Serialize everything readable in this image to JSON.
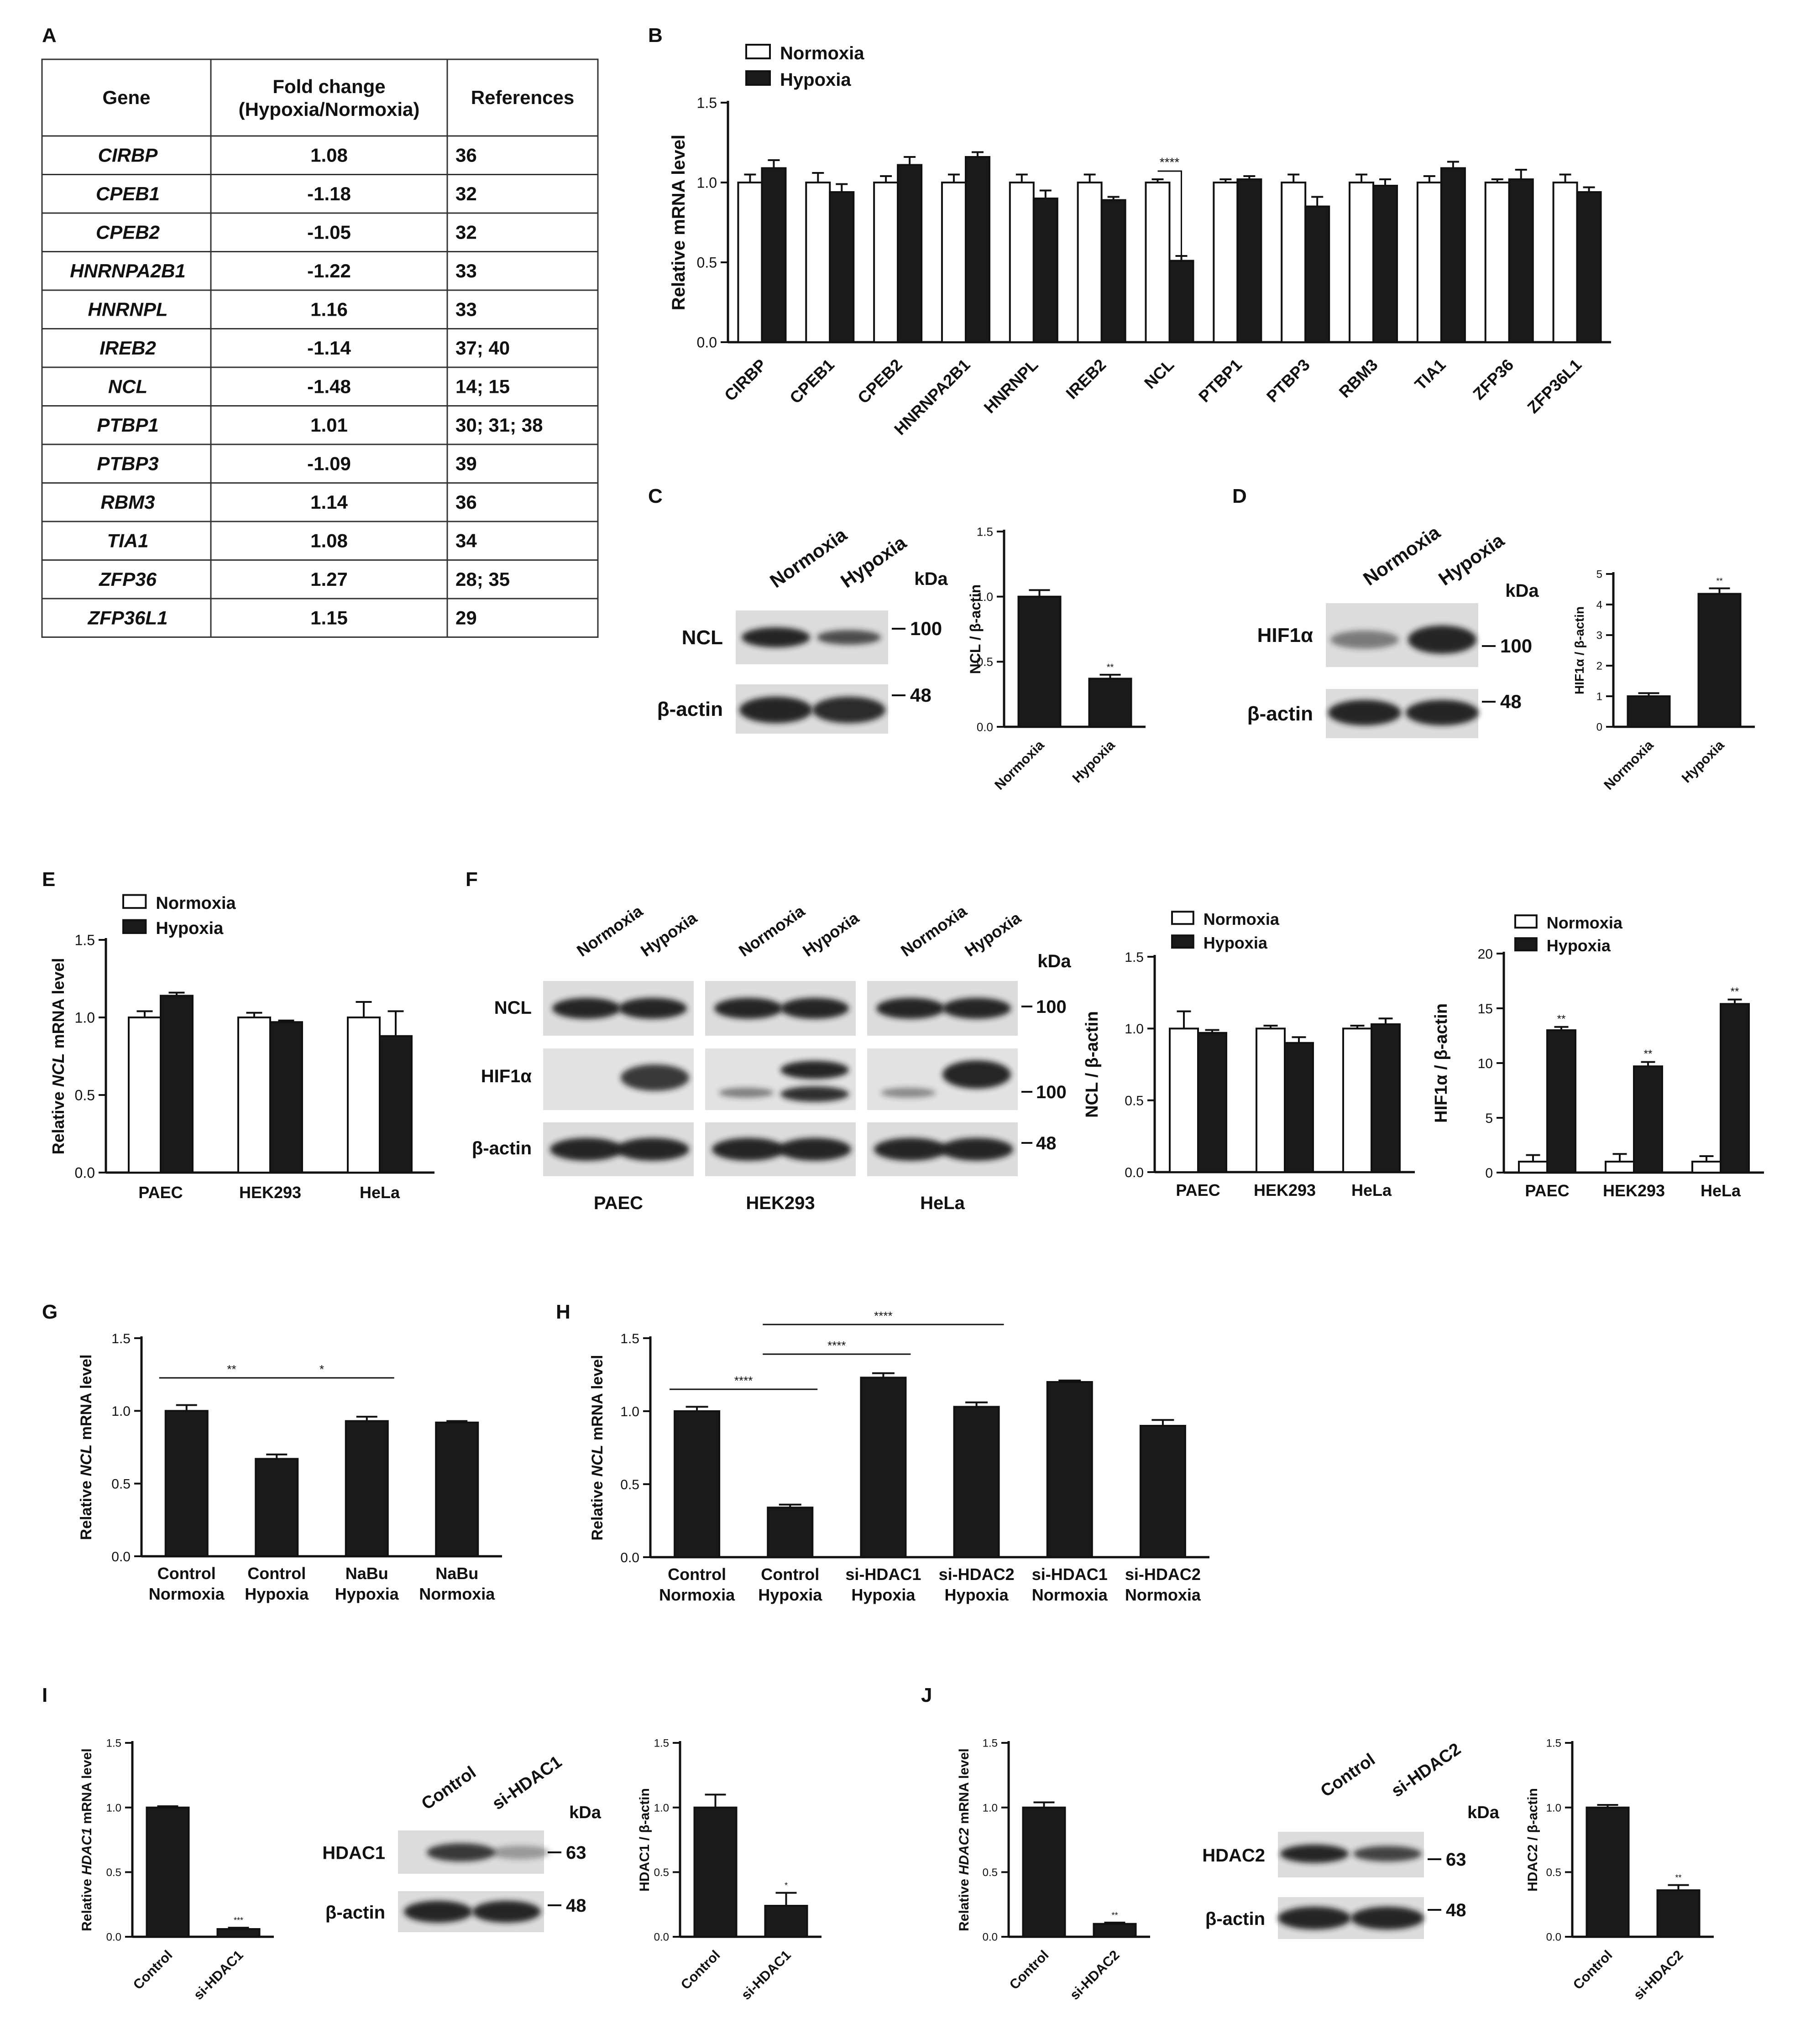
{
  "panel_labels": [
    "A",
    "B",
    "C",
    "D",
    "E",
    "F",
    "G",
    "H",
    "I",
    "J"
  ],
  "table": {
    "headers": [
      "Gene",
      "Fold change",
      "(Hypoxia/Normoxia)",
      "References"
    ],
    "rows": [
      {
        "gene": "CIRBP",
        "fold": "1.08",
        "ref": "36"
      },
      {
        "gene": "CPEB1",
        "fold": "-1.18",
        "ref": "32"
      },
      {
        "gene": "CPEB2",
        "fold": "-1.05",
        "ref": "32"
      },
      {
        "gene": "HNRNPA2B1",
        "fold": "-1.22",
        "ref": "33"
      },
      {
        "gene": "HNRNPL",
        "fold": "1.16",
        "ref": "33"
      },
      {
        "gene": "IREB2",
        "fold": "-1.14",
        "ref": "37; 40"
      },
      {
        "gene": "NCL",
        "fold": "-1.48",
        "ref": "14; 15"
      },
      {
        "gene": "PTBP1",
        "fold": "1.01",
        "ref": "30; 31; 38"
      },
      {
        "gene": "PTBP3",
        "fold": "-1.09",
        "ref": "39"
      },
      {
        "gene": "RBM3",
        "fold": "1.14",
        "ref": "36"
      },
      {
        "gene": "TIA1",
        "fold": "1.08",
        "ref": "34"
      },
      {
        "gene": "ZFP36",
        "fold": "1.27",
        "ref": "28; 35"
      },
      {
        "gene": "ZFP36L1",
        "fold": "1.15",
        "ref": "29"
      }
    ]
  },
  "chart_data": [
    {
      "panel": "B",
      "type": "bar",
      "ylabel": "Relative mRNA level",
      "ylim": [
        0,
        1.5
      ],
      "yticks": [
        "0.0",
        "0.5",
        "1.0",
        "1.5"
      ],
      "categories": [
        "CIRBP",
        "CPEB1",
        "CPEB2",
        "HNRNPA2B1",
        "HNRNPL",
        "IREB2",
        "NCL",
        "PTBP1",
        "PTBP3",
        "RBM3",
        "TIA1",
        "ZFP36",
        "ZFP36L1"
      ],
      "series": [
        {
          "name": "Normoxia",
          "values": [
            1.0,
            1.0,
            1.0,
            1.0,
            1.0,
            1.0,
            1.0,
            1.0,
            1.0,
            1.0,
            1.0,
            1.0,
            1.0
          ],
          "errors": [
            0.05,
            0.06,
            0.04,
            0.05,
            0.05,
            0.05,
            0.02,
            0.02,
            0.05,
            0.05,
            0.04,
            0.02,
            0.05
          ]
        },
        {
          "name": "Hypoxia",
          "values": [
            1.09,
            0.94,
            1.11,
            1.16,
            0.9,
            0.89,
            0.51,
            1.02,
            0.85,
            0.98,
            1.09,
            1.02,
            0.94
          ],
          "errors": [
            0.05,
            0.05,
            0.05,
            0.03,
            0.05,
            0.02,
            0.03,
            0.02,
            0.06,
            0.04,
            0.04,
            0.06,
            0.03
          ]
        }
      ],
      "annotations": [
        {
          "text": "****",
          "between": [
            "NCL Normoxia",
            "NCL Hypoxia"
          ]
        }
      ],
      "legend": "top-left"
    },
    {
      "panel": "C",
      "type": "bar",
      "ylabel": "NCL / β-actin",
      "ylim": [
        0,
        1.5
      ],
      "yticks": [
        "0.0",
        "0.5",
        "1.0",
        "1.5"
      ],
      "categories": [
        "Normoxia",
        "Hypoxia"
      ],
      "values": [
        1.0,
        0.37
      ],
      "errors": [
        0.05,
        0.03
      ],
      "annotations": [
        "",
        "**"
      ]
    },
    {
      "panel": "D",
      "type": "bar",
      "ylabel": "HIF1α / β-actin",
      "ylim": [
        0,
        5
      ],
      "yticks": [
        "0",
        "1",
        "2",
        "3",
        "4",
        "5"
      ],
      "categories": [
        "Normoxia",
        "Hypoxia"
      ],
      "values": [
        1.0,
        4.35
      ],
      "errors": [
        0.1,
        0.18
      ],
      "annotations": [
        "",
        "**"
      ]
    },
    {
      "panel": "E",
      "type": "bar",
      "ylabel": "Relative NCL mRNA level",
      "ylim": [
        0,
        1.5
      ],
      "yticks": [
        "0.0",
        "0.5",
        "1.0",
        "1.5"
      ],
      "categories": [
        "PAEC",
        "HEK293",
        "HeLa"
      ],
      "series": [
        {
          "name": "Normoxia",
          "values": [
            1.0,
            1.0,
            1.0
          ],
          "errors": [
            0.04,
            0.03,
            0.1
          ]
        },
        {
          "name": "Hypoxia",
          "values": [
            1.14,
            0.97,
            0.88
          ],
          "errors": [
            0.02,
            0.01,
            0.16
          ]
        }
      ],
      "legend": "top-left"
    },
    {
      "panel": "F",
      "type": "bar",
      "ylabel": "NCL / β-actin",
      "ylim": [
        0,
        1.5
      ],
      "yticks": [
        "0.0",
        "0.5",
        "1.0",
        "1.5"
      ],
      "categories": [
        "PAEC",
        "HEK293",
        "HeLa"
      ],
      "series": [
        {
          "name": "Normoxia",
          "values": [
            1.0,
            1.0,
            1.0
          ],
          "errors": [
            0.12,
            0.02,
            0.02
          ]
        },
        {
          "name": "Hypoxia",
          "values": [
            0.97,
            0.9,
            1.03
          ],
          "errors": [
            0.02,
            0.04,
            0.04
          ]
        }
      ],
      "legend": "top-left"
    },
    {
      "panel": "F",
      "type": "bar",
      "ylabel": "HIF1α / β-actin",
      "ylim": [
        0,
        20
      ],
      "yticks": [
        "0",
        "5",
        "10",
        "15",
        "20"
      ],
      "categories": [
        "PAEC",
        "HEK293",
        "HeLa"
      ],
      "series": [
        {
          "name": "Normoxia",
          "values": [
            1.0,
            1.0,
            1.0
          ],
          "errors": [
            0.6,
            0.7,
            0.5
          ]
        },
        {
          "name": "Hypoxia",
          "values": [
            13.0,
            9.7,
            15.4
          ],
          "errors": [
            0.3,
            0.4,
            0.4
          ]
        }
      ],
      "annotations": [
        "**",
        "**",
        "**"
      ],
      "legend": "top-left"
    },
    {
      "panel": "G",
      "type": "bar",
      "ylabel": "Relative NCL mRNA level",
      "ylim": [
        0,
        1.5
      ],
      "yticks": [
        "0.0",
        "0.5",
        "1.0",
        "1.5"
      ],
      "categories": [
        [
          "Control",
          "Normoxia"
        ],
        [
          "Control",
          "Hypoxia"
        ],
        [
          "NaBu",
          "Hypoxia"
        ],
        [
          "NaBu",
          "Normoxia"
        ]
      ],
      "values": [
        1.0,
        0.67,
        0.93,
        0.92
      ],
      "errors": [
        0.04,
        0.03,
        0.03,
        0.01
      ],
      "significance": [
        {
          "text": "**",
          "from": 0,
          "to": 1
        },
        {
          "text": "*",
          "from": 1,
          "to": 2
        }
      ]
    },
    {
      "panel": "H",
      "type": "bar",
      "ylabel": "Relative NCL mRNA level",
      "ylim": [
        0,
        1.5
      ],
      "yticks": [
        "0.0",
        "0.5",
        "1.0",
        "1.5"
      ],
      "categories": [
        [
          "Control",
          "Normoxia"
        ],
        [
          "Control",
          "Hypoxia"
        ],
        [
          "si-HDAC1",
          "Hypoxia"
        ],
        [
          "si-HDAC2",
          "Hypoxia"
        ],
        [
          "si-HDAC1",
          "Normoxia"
        ],
        [
          "si-HDAC2",
          "Normoxia"
        ]
      ],
      "values": [
        1.0,
        0.34,
        1.23,
        1.03,
        1.2,
        0.9
      ],
      "errors": [
        0.03,
        0.02,
        0.03,
        0.03,
        0.01,
        0.04
      ],
      "significance": [
        {
          "text": "****",
          "from": 0,
          "to": 1
        },
        {
          "text": "****",
          "from": 1,
          "to": 2
        },
        {
          "text": "****",
          "from": 1,
          "to": 3
        }
      ]
    },
    {
      "panel": "I",
      "type": "bar",
      "ylabel": "Relative HDAC1 mRNA level",
      "ylim": [
        0,
        1.5
      ],
      "yticks": [
        "0.0",
        "0.5",
        "1.0",
        "1.5"
      ],
      "categories": [
        "Control",
        "si-HDAC1"
      ],
      "values": [
        1.0,
        0.06
      ],
      "errors": [
        0.01,
        0.01
      ],
      "annotations": [
        "",
        "***"
      ]
    },
    {
      "panel": "I",
      "type": "bar",
      "ylabel": "HDAC1 / β-actin",
      "ylim": [
        0,
        1.5
      ],
      "yticks": [
        "0.0",
        "0.5",
        "1.0",
        "1.5"
      ],
      "categories": [
        "Control",
        "si-HDAC1"
      ],
      "values": [
        1.0,
        0.24
      ],
      "errors": [
        0.1,
        0.1
      ],
      "annotations": [
        "",
        "*"
      ]
    },
    {
      "panel": "J",
      "type": "bar",
      "ylabel": "Relative HDAC2 mRNA level",
      "ylim": [
        0,
        1.5
      ],
      "yticks": [
        "0.0",
        "0.5",
        "1.0",
        "1.5"
      ],
      "categories": [
        "Control",
        "si-HDAC2"
      ],
      "values": [
        1.0,
        0.1
      ],
      "errors": [
        0.04,
        0.01
      ],
      "annotations": [
        "",
        "**"
      ]
    },
    {
      "panel": "J",
      "type": "bar",
      "ylabel": "HDAC2 / β-actin",
      "ylim": [
        0,
        1.5
      ],
      "yticks": [
        "0.0",
        "0.5",
        "1.0",
        "1.5"
      ],
      "categories": [
        "Control",
        "si-HDAC2"
      ],
      "values": [
        1.0,
        0.36
      ],
      "errors": [
        0.02,
        0.04
      ],
      "annotations": [
        "",
        "**"
      ]
    }
  ],
  "blots": {
    "C": {
      "lanes": [
        "Normoxia",
        "Hypoxia"
      ],
      "rows": [
        "NCL",
        "β-actin"
      ],
      "markers": [
        "100",
        "48"
      ],
      "unit": "kDa"
    },
    "D": {
      "lanes": [
        "Normoxia",
        "Hypoxia"
      ],
      "rows": [
        "HIF1α",
        "β-actin"
      ],
      "markers": [
        "100",
        "48"
      ],
      "unit": "kDa"
    },
    "F": {
      "lanes": [
        "Normoxia",
        "Hypoxia"
      ],
      "rows": [
        "NCL",
        "HIF1α",
        "β-actin"
      ],
      "markers": [
        "100",
        "100",
        "48"
      ],
      "unit": "kDa",
      "cells": [
        "PAEC",
        "HEK293",
        "HeLa"
      ]
    },
    "I": {
      "lanes": [
        "Control",
        "si-HDAC1"
      ],
      "rows": [
        "HDAC1",
        "β-actin"
      ],
      "markers": [
        "63",
        "48"
      ],
      "unit": "kDa"
    },
    "J": {
      "lanes": [
        "Control",
        "si-HDAC2"
      ],
      "rows": [
        "HDAC2",
        "β-actin"
      ],
      "markers": [
        "63",
        "48"
      ],
      "unit": "kDa"
    }
  },
  "colors": {
    "normoxia": "#ffffff",
    "hypoxia": "#1a1a1a",
    "axis": "#111111"
  }
}
